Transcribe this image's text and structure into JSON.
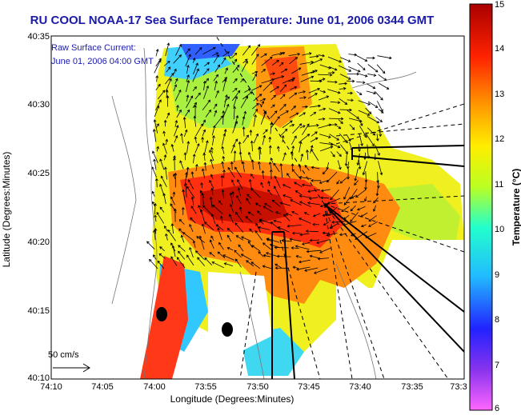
{
  "title": "RU COOL  NOAA-17  Sea Surface Temperature:  June 01, 2006 0344 GMT",
  "current_label": "Raw Surface Current:",
  "current_time": "June 01, 2006 04:00 GMT",
  "scale_label": "50 cm/s",
  "axes": {
    "xlabel": "Longitude (Degrees:Minutes)",
    "ylabel": "Latitude (Degrees:Minutes)",
    "xticks": [
      "74:10",
      "74:05",
      "74:00",
      "73:55",
      "73:50",
      "73:45",
      "73:40",
      "73:35",
      "73:3"
    ],
    "yticks": [
      "40:35",
      "40:30",
      "40:25",
      "40:20",
      "40:15",
      "40:10"
    ]
  },
  "colorbar": {
    "label": "Temperature (°C)",
    "ticks": [
      "15",
      "14",
      "13",
      "12",
      "11",
      "10",
      "9",
      "8",
      "7",
      "6"
    ],
    "range": [
      6,
      15
    ],
    "colors": [
      "#ff66ff",
      "#7722dd",
      "#2222ff",
      "#22bbff",
      "#22ffcc",
      "#bbff22",
      "#ffee00",
      "#ff9900",
      "#ff2200",
      "#aa0000"
    ]
  },
  "colors": {
    "title": "#1a1aa8",
    "land": "#ffffff",
    "coast": "#000000"
  }
}
